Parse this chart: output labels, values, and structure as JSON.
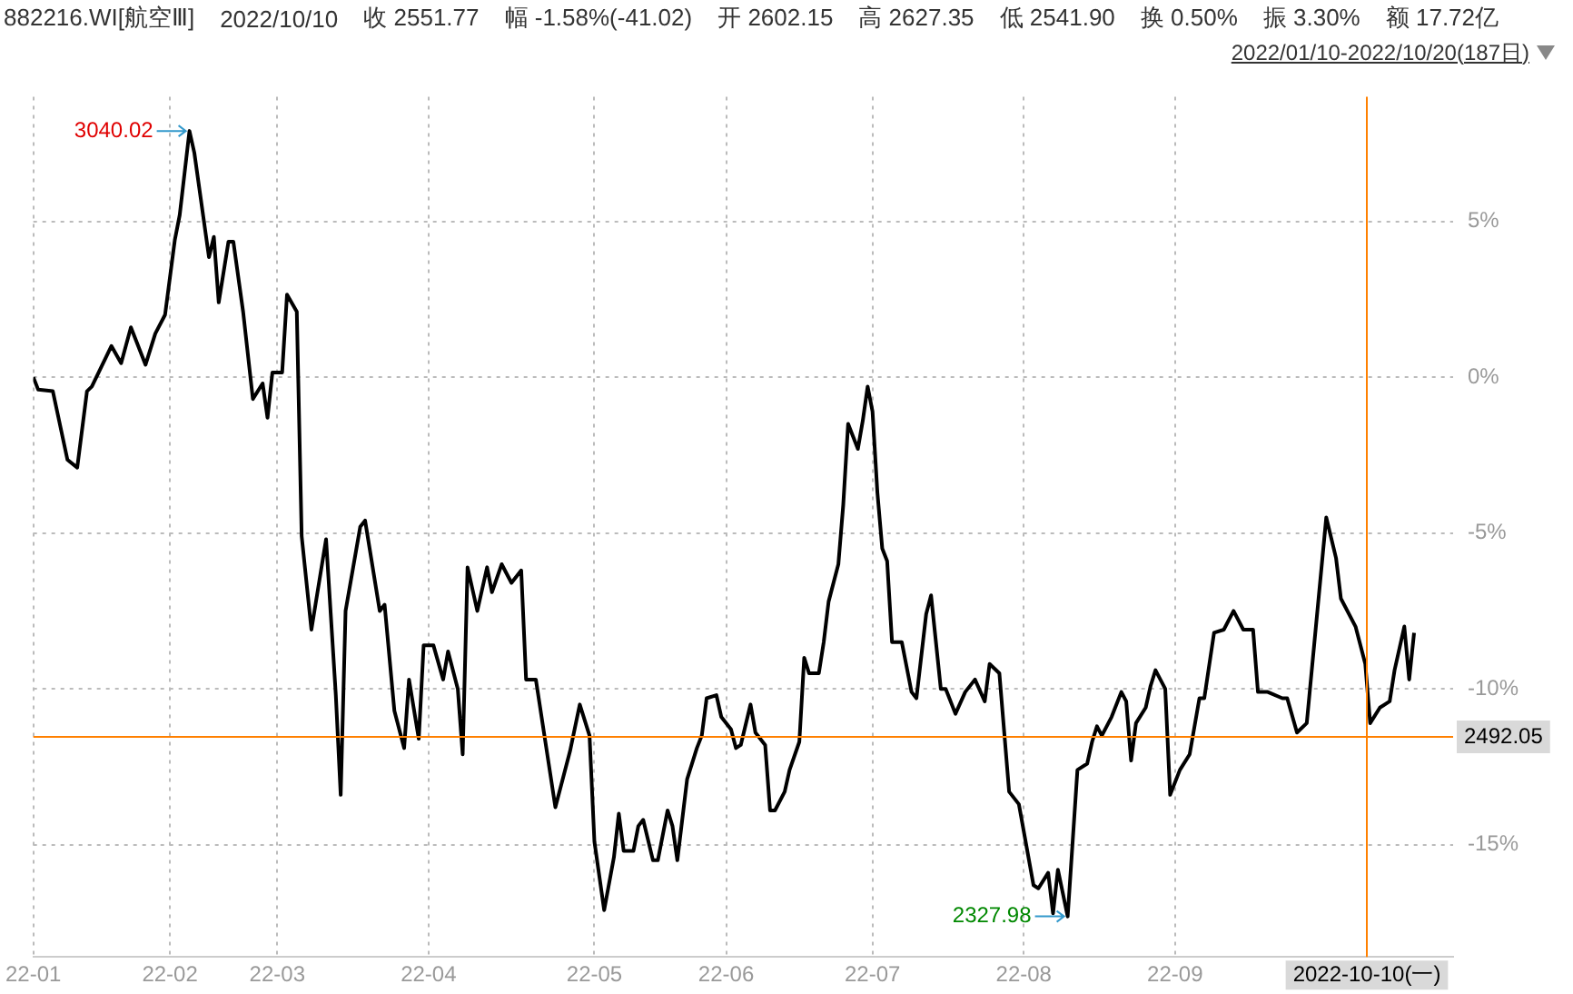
{
  "chart_data": {
    "type": "line",
    "title": "882216.WI[航空Ⅲ]",
    "subtitle": "2022/01/10-2022/10/20(187日)",
    "annotations": [
      "2022/10/10",
      "收 2551.77",
      "幅 -1.58%(-41.02)",
      "开 2602.15",
      "高 2627.35",
      "低 2541.90",
      "换 0.50%",
      "振 3.30%",
      "额 17.72亿",
      {
        "text": "3040.02",
        "x": "2022-02-11",
        "y": 7.9
      },
      {
        "text": "2327.98",
        "x": "2022-08-10",
        "y": -17.3
      },
      "2492.05"
    ],
    "series": [
      {
        "color": "#000000",
        "x": [
          "2022-01-10",
          "2022-01-11",
          "2022-01-14",
          "2022-01-17",
          "2022-01-19",
          "2022-01-21",
          "2022-01-22",
          "2022-01-26",
          "2022-01-28",
          "2022-01-30",
          "2022-02-02",
          "2022-02-04",
          "2022-02-06",
          "2022-02-08",
          "2022-02-09",
          "2022-02-11",
          "2022-02-12",
          "2022-02-15",
          "2022-02-16",
          "2022-02-17",
          "2022-02-19",
          "2022-02-20",
          "2022-02-22",
          "2022-02-24",
          "2022-02-26",
          "2022-02-27",
          "2022-02-28",
          "2022-03-02",
          "2022-03-03",
          "2022-03-05",
          "2022-03-06",
          "2022-03-08",
          "2022-03-11",
          "2022-03-13",
          "2022-03-14",
          "2022-03-15",
          "2022-03-18",
          "2022-03-19",
          "2022-03-22",
          "2022-03-23",
          "2022-03-25",
          "2022-03-27",
          "2022-03-28",
          "2022-03-30",
          "2022-03-31",
          "2022-04-02",
          "2022-04-04",
          "2022-04-05",
          "2022-04-07",
          "2022-04-08",
          "2022-04-09",
          "2022-04-11",
          "2022-04-13",
          "2022-04-14",
          "2022-04-16",
          "2022-04-18",
          "2022-04-20",
          "2022-04-21",
          "2022-04-23",
          "2022-04-27",
          "2022-04-30",
          "2022-05-02",
          "2022-05-04",
          "2022-05-05",
          "2022-05-07",
          "2022-05-09",
          "2022-05-10",
          "2022-05-11",
          "2022-05-13",
          "2022-05-14",
          "2022-05-15",
          "2022-05-17",
          "2022-05-18",
          "2022-05-20",
          "2022-05-21",
          "2022-05-22",
          "2022-05-24",
          "2022-05-26",
          "2022-05-27",
          "2022-05-28",
          "2022-05-30",
          "2022-05-31",
          "2022-06-02",
          "2022-06-03",
          "2022-06-04",
          "2022-06-06",
          "2022-06-07",
          "2022-06-09",
          "2022-06-10",
          "2022-06-11",
          "2022-06-13",
          "2022-06-14",
          "2022-06-16",
          "2022-06-17",
          "2022-06-18",
          "2022-06-20",
          "2022-06-21",
          "2022-06-22",
          "2022-06-24",
          "2022-06-25",
          "2022-06-26",
          "2022-06-27",
          "2022-06-28",
          "2022-06-29",
          "2022-06-30",
          "2022-07-01",
          "2022-07-02",
          "2022-07-03",
          "2022-07-04",
          "2022-07-05",
          "2022-07-07",
          "2022-07-09",
          "2022-07-10",
          "2022-07-12",
          "2022-07-13",
          "2022-07-15",
          "2022-07-16",
          "2022-07-18",
          "2022-07-20",
          "2022-07-22",
          "2022-07-24",
          "2022-07-25",
          "2022-07-27",
          "2022-07-29",
          "2022-07-31",
          "2022-08-03",
          "2022-08-04",
          "2022-08-06",
          "2022-08-07",
          "2022-08-08",
          "2022-08-10",
          "2022-08-12",
          "2022-08-14",
          "2022-08-15",
          "2022-08-16",
          "2022-08-17",
          "2022-08-19",
          "2022-08-21",
          "2022-08-22",
          "2022-08-23",
          "2022-08-24",
          "2022-08-26",
          "2022-08-27",
          "2022-08-28",
          "2022-08-30",
          "2022-08-31",
          "2022-09-02",
          "2022-09-04",
          "2022-09-06",
          "2022-09-07",
          "2022-09-09",
          "2022-09-11",
          "2022-09-13",
          "2022-09-15",
          "2022-09-17",
          "2022-09-18",
          "2022-09-20",
          "2022-09-23",
          "2022-09-24",
          "2022-09-26",
          "2022-09-28",
          "2022-10-02",
          "2022-10-04",
          "2022-10-05",
          "2022-10-08",
          "2022-10-10",
          "2022-10-11",
          "2022-10-13",
          "2022-10-15",
          "2022-10-16",
          "2022-10-18",
          "2022-10-19",
          "2022-10-20"
        ],
        "values": [
          0.0,
          -0.4,
          -0.45,
          -2.65,
          -2.9,
          -0.45,
          -0.3,
          1.0,
          0.45,
          1.6,
          0.4,
          1.4,
          2.0,
          4.4,
          5.2,
          7.9,
          7.2,
          3.85,
          4.5,
          2.4,
          4.35,
          4.35,
          2.1,
          -0.7,
          -0.2,
          -1.3,
          0.15,
          0.15,
          2.65,
          2.1,
          -5.1,
          -8.1,
          -5.2,
          -10.2,
          -13.4,
          -7.5,
          -4.8,
          -4.6,
          -7.5,
          -7.3,
          -10.7,
          -11.9,
          -9.7,
          -11.6,
          -8.6,
          -8.6,
          -9.7,
          -8.8,
          -10.0,
          -12.1,
          -6.1,
          -7.5,
          -6.1,
          -6.9,
          -6.0,
          -6.6,
          -6.2,
          -9.7,
          -9.7,
          -13.8,
          -12.0,
          -10.5,
          -11.5,
          -14.9,
          -17.1,
          -15.4,
          -14.0,
          -15.2,
          -15.2,
          -14.4,
          -14.2,
          -15.5,
          -15.5,
          -13.9,
          -14.4,
          -15.5,
          -12.9,
          -11.9,
          -11.5,
          -10.3,
          -10.2,
          -10.9,
          -11.3,
          -11.9,
          -11.8,
          -10.5,
          -11.4,
          -11.8,
          -13.9,
          -13.9,
          -13.3,
          -12.6,
          -11.7,
          -9.0,
          -9.5,
          -9.5,
          -8.5,
          -7.2,
          -6.0,
          -4.1,
          -1.5,
          -1.9,
          -2.3,
          -1.4,
          -0.3,
          -1.1,
          -3.7,
          -5.5,
          -5.9,
          -8.5,
          -8.5,
          -10.1,
          -10.3,
          -7.6,
          -7.0,
          -10.0,
          -10.0,
          -10.8,
          -10.1,
          -9.7,
          -10.4,
          -9.2,
          -9.5,
          -13.3,
          -13.7,
          -16.3,
          -16.4,
          -15.9,
          -17.2,
          -15.8,
          -17.3,
          -12.6,
          -12.4,
          -11.7,
          -11.2,
          -11.5,
          -10.9,
          -10.1,
          -10.4,
          -12.3,
          -11.1,
          -10.6,
          -9.9,
          -9.4,
          -10.0,
          -13.4,
          -12.6,
          -12.1,
          -10.3,
          -10.3,
          -8.2,
          -8.1,
          -7.5,
          -8.1,
          -8.1,
          -10.1,
          -10.1,
          -10.3,
          -10.3,
          -11.4,
          -11.1,
          -4.5,
          -5.8,
          -7.1,
          -8.0,
          -9.2,
          -11.1,
          -10.6,
          -10.4,
          -9.4,
          -8.0,
          -9.7,
          -8.2
        ]
      }
    ],
    "xlim": [
      "2022-01-10",
      "2022-10-28"
    ],
    "xticks": [
      {
        "value": "2022-01-10",
        "label": "22-01"
      },
      {
        "value": "2022-02-07",
        "label": "22-02"
      },
      {
        "value": "2022-03-01",
        "label": "22-03"
      },
      {
        "value": "2022-04-01",
        "label": "22-04"
      },
      {
        "value": "2022-05-05",
        "label": "22-05"
      },
      {
        "value": "2022-06-01",
        "label": "22-06"
      },
      {
        "value": "2022-07-01",
        "label": "22-07"
      },
      {
        "value": "2022-08-01",
        "label": "22-08"
      },
      {
        "value": "2022-09-01",
        "label": "22-09"
      }
    ],
    "ylim": [
      -18.6,
      9.0
    ],
    "yticks": [
      {
        "value": -15,
        "label": "-15%"
      },
      {
        "value": -10,
        "label": "-10%"
      },
      {
        "value": -5,
        "label": "-5%"
      },
      {
        "value": 0,
        "label": "0%"
      },
      {
        "value": 5,
        "label": "5%"
      }
    ],
    "ref_lines": [
      {
        "axis": "x",
        "value": "2022-10-10",
        "label": "2022-10-10(一)",
        "color": "#ff8000"
      },
      {
        "axis": "y",
        "value": -11.5,
        "color": "#ff8000"
      }
    ],
    "grid": true,
    "legend": false,
    "marker": "none",
    "line_style": "solid"
  }
}
